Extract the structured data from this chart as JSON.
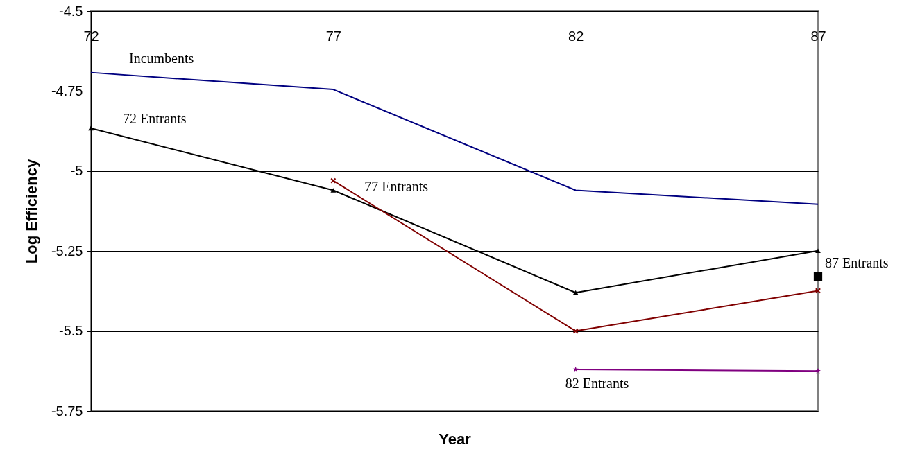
{
  "chart_data": {
    "type": "line",
    "xlabel": "Year",
    "ylabel": "Log Efficiency",
    "x": [
      72,
      77,
      82,
      87
    ],
    "xlim": [
      72,
      87
    ],
    "xticks": [
      72,
      77,
      82,
      87
    ],
    "ylim": [
      -5.75,
      -4.5
    ],
    "yticks": [
      -5.75,
      -5.5,
      -5.25,
      -5,
      -4.75,
      -4.5
    ],
    "grid": "y",
    "series": [
      {
        "name": "Incumbents",
        "color": "#000080",
        "marker": "none",
        "values": [
          -4.692,
          -4.745,
          -5.06,
          -5.104
        ]
      },
      {
        "name": "72 Entrants",
        "color": "#000000",
        "marker": "triangle",
        "values": [
          -4.866,
          -5.06,
          -5.38,
          -5.249
        ]
      },
      {
        "name": "77 Entrants",
        "color": "#800000",
        "marker": "cross",
        "values": [
          null,
          -5.03,
          -5.5,
          -5.374
        ]
      },
      {
        "name": "82 Entrants",
        "color": "#800080",
        "marker": "star",
        "values": [
          null,
          null,
          -5.62,
          -5.625
        ]
      },
      {
        "name": "87 Entrants",
        "color": "#000000",
        "marker": "square",
        "values": [
          null,
          null,
          null,
          -5.33
        ]
      }
    ]
  }
}
